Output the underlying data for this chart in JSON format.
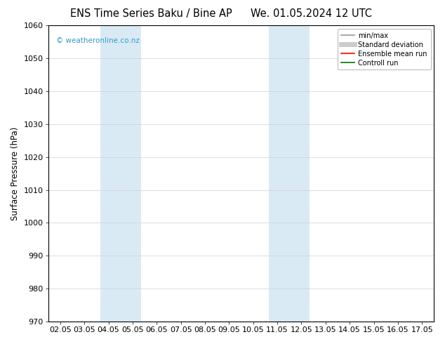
{
  "title_left": "ENS Time Series Baku / Bine AP",
  "title_right": "We. 01.05.2024 12 UTC",
  "ylabel": "Surface Pressure (hPa)",
  "ylim": [
    970,
    1060
  ],
  "yticks": [
    970,
    980,
    990,
    1000,
    1010,
    1020,
    1030,
    1040,
    1050,
    1060
  ],
  "xtick_labels": [
    "02.05",
    "03.05",
    "04.05",
    "05.05",
    "06.05",
    "07.05",
    "08.05",
    "09.05",
    "10.05",
    "11.05",
    "12.05",
    "13.05",
    "14.05",
    "15.05",
    "16.05",
    "17.05"
  ],
  "shaded_bands": [
    {
      "xstart": 2,
      "xend": 3,
      "color": "#daeaf5"
    },
    {
      "xstart": 9,
      "xend": 10,
      "color": "#daeaf5"
    }
  ],
  "watermark": "© weatheronline.co.nz",
  "watermark_color": "#3399cc",
  "bg_color": "#ffffff",
  "plot_bg_color": "#ffffff",
  "border_color": "#000000",
  "grid_color": "#d0d0d0",
  "legend_items": [
    {
      "label": "min/max",
      "color": "#999999",
      "lw": 1.2,
      "style": "-"
    },
    {
      "label": "Standard deviation",
      "color": "#cccccc",
      "lw": 5,
      "style": "-"
    },
    {
      "label": "Ensemble mean run",
      "color": "#ff0000",
      "lw": 1.2,
      "style": "-"
    },
    {
      "label": "Controll run",
      "color": "#007700",
      "lw": 1.2,
      "style": "-"
    }
  ],
  "title_fontsize": 10.5,
  "tick_fontsize": 8,
  "ylabel_fontsize": 8.5,
  "watermark_fontsize": 7.5,
  "legend_fontsize": 7
}
